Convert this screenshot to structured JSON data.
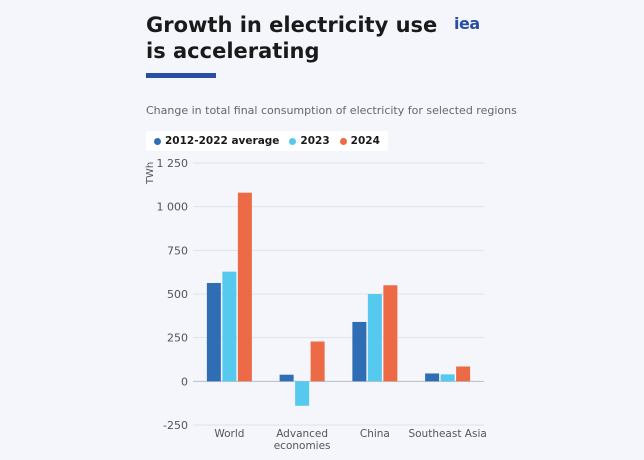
{
  "header": {
    "title_line1": "Growth in electricity use",
    "title_line2": "is accelerating",
    "logo_text": "iea",
    "subtitle": "Change in total final consumption of electricity for selected regions"
  },
  "colors": {
    "series_2012_2022": "#2f6db5",
    "series_2023": "#56c9ef",
    "series_2024": "#ec6a45",
    "accent": "#2a4ea3"
  },
  "chart_data": {
    "type": "bar",
    "title": "Growth in electricity use is accelerating",
    "subtitle": "Change in total final consumption of electricity for selected regions",
    "ylabel": "TWh",
    "xlabel": "",
    "ylim": [
      -250,
      1250
    ],
    "yticks": [
      -250,
      0,
      250,
      500,
      750,
      1000,
      1250
    ],
    "ytick_labels": [
      "-250",
      "0",
      "250",
      "500",
      "750",
      "1 000",
      "1 250"
    ],
    "grid": true,
    "legend_position": "top-left",
    "categories": [
      "World",
      "Advanced economies",
      "China",
      "Southeast Asia"
    ],
    "category_lines": [
      [
        "World"
      ],
      [
        "Advanced",
        "economies"
      ],
      [
        "China"
      ],
      [
        "Southeast Asia"
      ]
    ],
    "series": [
      {
        "name": "2012-2022 average",
        "color": "#2f6db5",
        "values": [
          563,
          38,
          340,
          45
        ]
      },
      {
        "name": "2023",
        "color": "#56c9ef",
        "values": [
          628,
          -140,
          500,
          40
        ]
      },
      {
        "name": "2024",
        "color": "#ec6a45",
        "values": [
          1080,
          228,
          550,
          85
        ]
      }
    ]
  }
}
